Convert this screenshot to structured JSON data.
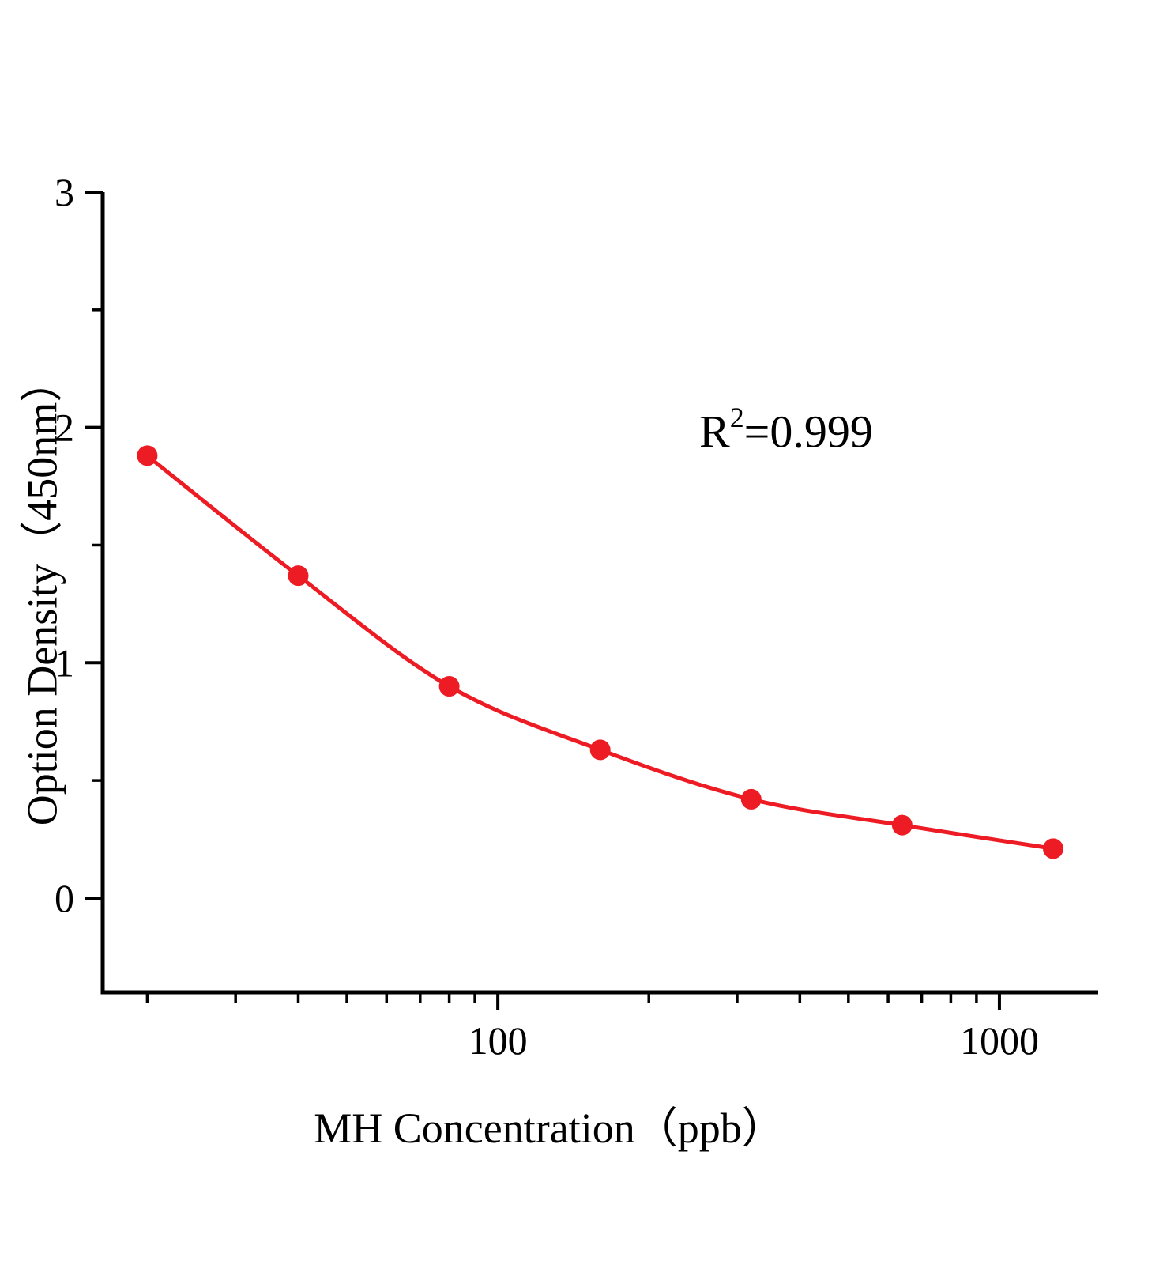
{
  "chart_data": {
    "type": "scatter",
    "x": [
      20,
      40,
      80,
      160,
      320,
      640,
      1280
    ],
    "y": [
      1.88,
      1.37,
      0.9,
      0.63,
      0.42,
      0.31,
      0.21
    ],
    "title": "",
    "xlabel": "MH Concentration（ppb）",
    "ylabel": "Option Density（450nm）",
    "annotation": {
      "base": "R",
      "superscript": "2",
      "rest": "=0.999"
    },
    "x_scale": "log",
    "xlim": [
      16.3,
      1574
    ],
    "ylim": [
      -0.4,
      3.0
    ],
    "grid": false,
    "legend": "none",
    "x_major_ticks": [
      {
        "value": 100,
        "label": "100"
      },
      {
        "value": 1000,
        "label": "1000"
      }
    ],
    "x_minor_ticks": [
      20,
      30,
      40,
      50,
      60,
      70,
      80,
      90,
      200,
      300,
      400,
      500,
      600,
      700,
      800,
      900
    ],
    "y_major_ticks": [
      {
        "value": 0,
        "label": "0"
      },
      {
        "value": 1,
        "label": "1"
      },
      {
        "value": 2,
        "label": "2"
      },
      {
        "value": 3,
        "label": "3"
      }
    ],
    "y_minor_ticks": [
      0.5,
      1.5,
      2.5
    ],
    "colors": {
      "curve": "#ed1c24",
      "points": "#ed1c24",
      "axis": "#000000"
    }
  }
}
